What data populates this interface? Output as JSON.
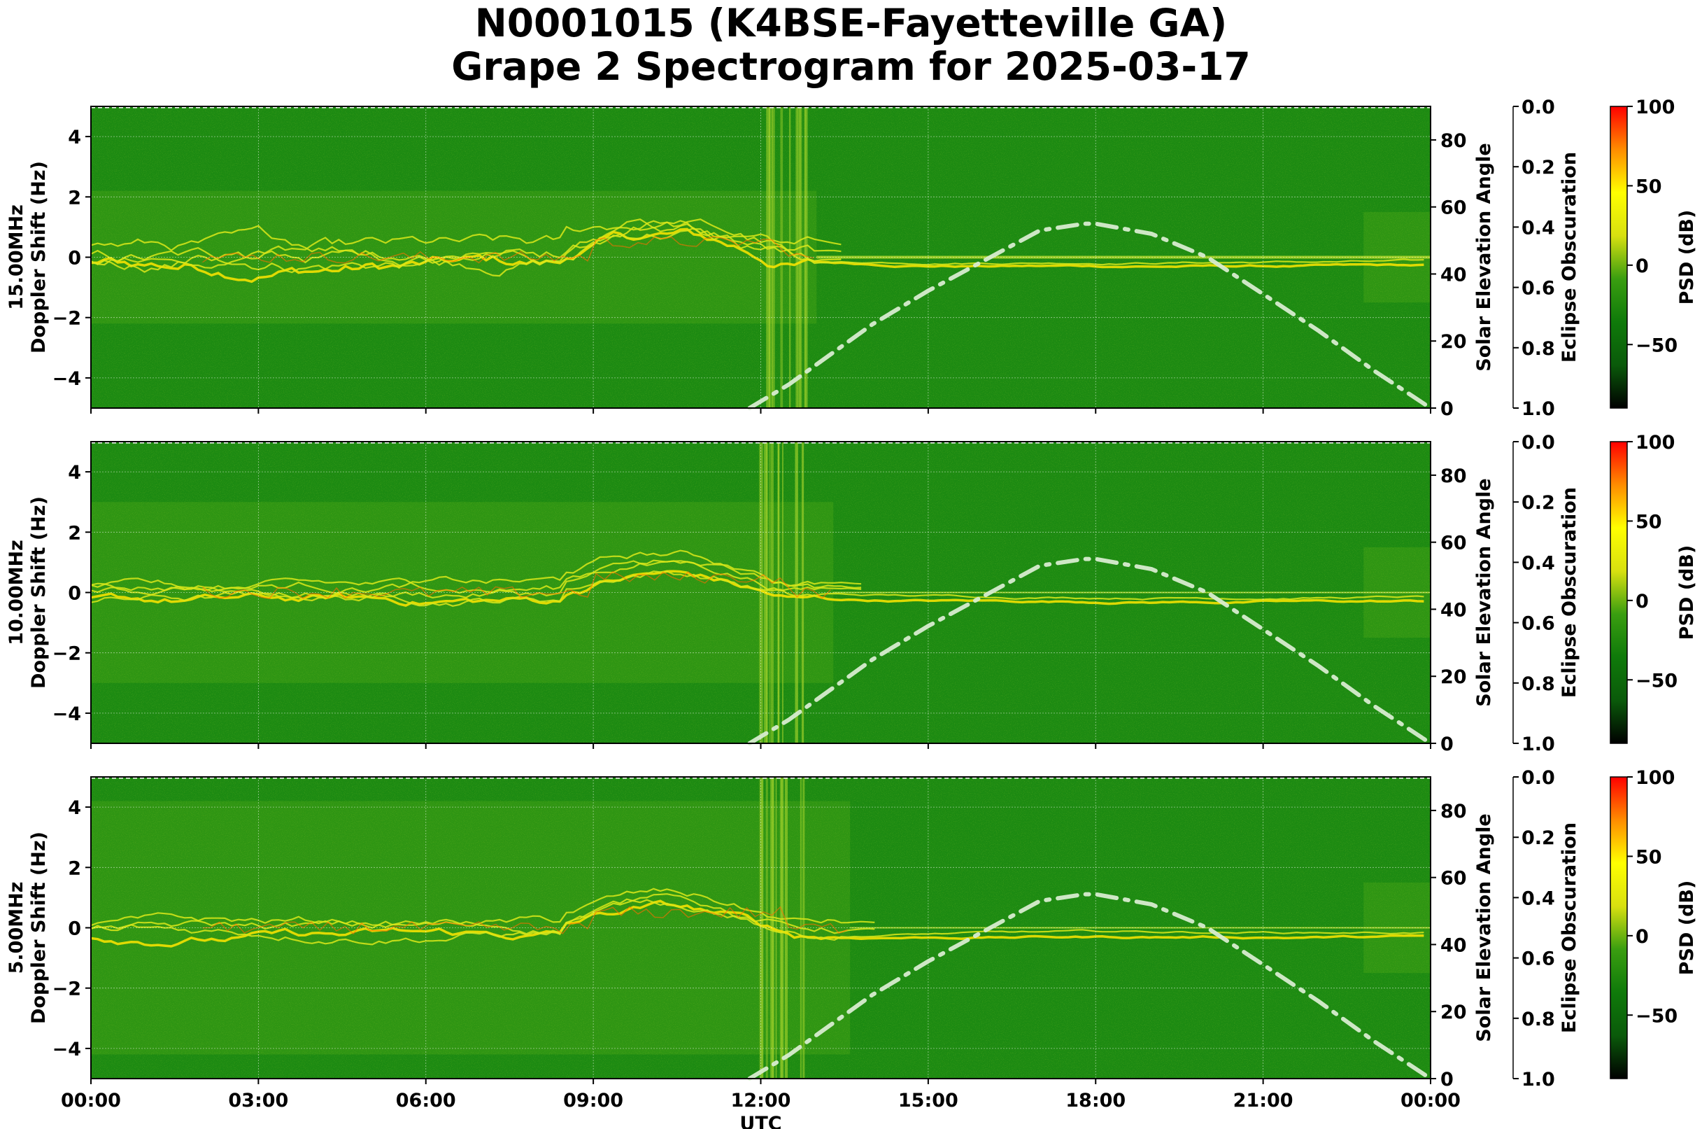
{
  "title": {
    "line1": "N0001015 (K4BSE-Fayetteville GA)",
    "line2": "Grape 2 Spectrogram for 2025-03-17"
  },
  "chart_data": {
    "type": "heatmap",
    "xlabel": "UTC",
    "x_ticks": [
      "00:00",
      "03:00",
      "06:00",
      "09:00",
      "12:00",
      "15:00",
      "18:00",
      "21:00",
      "00:00"
    ],
    "x_range_hours": [
      0,
      24
    ],
    "y_range": [
      -5,
      5
    ],
    "y_ticks": [
      4,
      2,
      0,
      -2,
      -4
    ],
    "y_ticks_text": [
      "4",
      "2",
      "0",
      "−2",
      "−4"
    ],
    "right_axis": {
      "label": "Solar Elevation Angle",
      "range": [
        0,
        90
      ],
      "ticks": [
        0,
        20,
        40,
        60,
        80
      ]
    },
    "eclipse_axis": {
      "label": "Eclipse Obscuration",
      "range": [
        0.0,
        1.0
      ],
      "ticks": [
        "0.0",
        "0.2",
        "0.4",
        "0.6",
        "0.8",
        "1.0"
      ]
    },
    "colorbar": {
      "label": "PSD (dB)",
      "range": [
        -90,
        100
      ],
      "ticks": [
        100,
        50,
        0,
        -50
      ],
      "ticks_text": [
        "100",
        "50",
        "0",
        "−50"
      ],
      "colors": [
        "#000000",
        "#0a5a0a",
        "#0f7a0a",
        "#3a9e10",
        "#d8e010",
        "#ffff00",
        "#ff8c00",
        "#ff0000"
      ]
    },
    "solar_elevation": {
      "hours": [
        11.8,
        12.5,
        13,
        14,
        15,
        16,
        17,
        17.8,
        18,
        19,
        20,
        21,
        22,
        23,
        24
      ],
      "degrees": [
        0,
        7,
        13,
        25,
        35,
        44,
        53,
        55,
        55,
        52,
        45,
        34,
        23,
        11,
        0
      ]
    },
    "grid": true,
    "panels": [
      {
        "ylabel_line1": "15.00MHz",
        "ylabel_line2": "Doppler Shift (Hz)"
      },
      {
        "ylabel_line1": "10.00MHz",
        "ylabel_line2": "Doppler Shift (Hz)"
      },
      {
        "ylabel_line1": "5.00MHz",
        "ylabel_line2": "Doppler Shift (Hz)"
      }
    ]
  }
}
